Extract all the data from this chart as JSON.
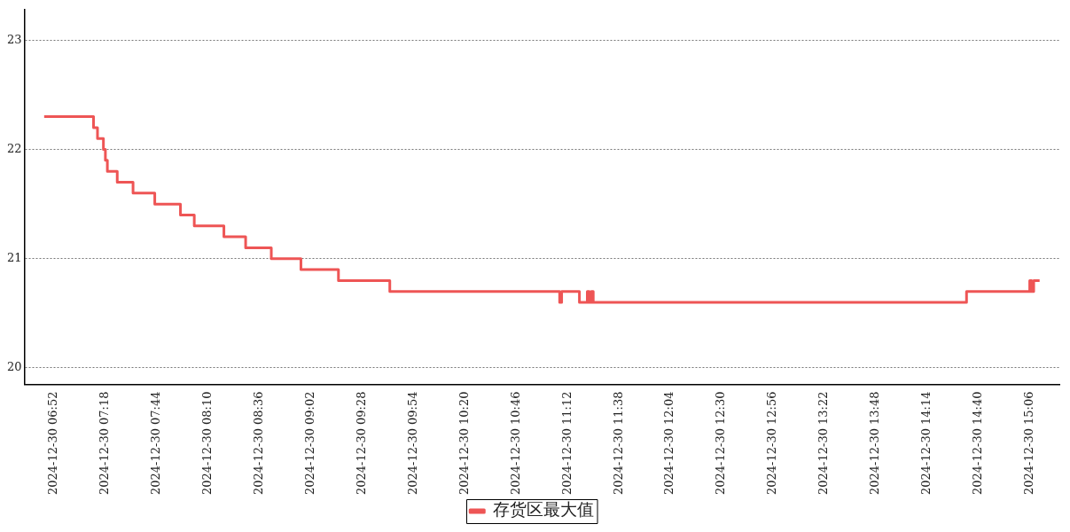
{
  "chart_data": {
    "type": "step",
    "x": [
      "2024-12-30T06:47",
      "2024-12-30T07:12",
      "2024-12-30T07:14",
      "2024-12-30T07:17",
      "2024-12-30T07:18",
      "2024-12-30T07:19",
      "2024-12-30T07:24",
      "2024-12-30T07:32",
      "2024-12-30T07:43",
      "2024-12-30T07:56",
      "2024-12-30T08:03",
      "2024-12-30T08:18",
      "2024-12-30T08:29",
      "2024-12-30T08:42",
      "2024-12-30T08:57",
      "2024-12-30T09:16",
      "2024-12-30T09:42",
      "2024-12-30T11:08",
      "2024-12-30T11:09",
      "2024-12-30T11:18",
      "2024-12-30T11:22",
      "2024-12-30T11:23",
      "2024-12-30T11:24",
      "2024-12-30T11:25",
      "2024-12-30T14:34",
      "2024-12-30T15:06",
      "2024-12-30T15:07",
      "2024-12-30T15:08",
      "2024-12-30T15:11"
    ],
    "series": [
      {
        "name": "存货区最大值",
        "color": "#ee5555",
        "values": [
          22.3,
          22.2,
          22.1,
          22.0,
          21.9,
          21.8,
          21.7,
          21.6,
          21.5,
          21.4,
          21.3,
          21.2,
          21.1,
          21.0,
          20.9,
          20.8,
          20.7,
          20.6,
          20.7,
          20.6,
          20.7,
          20.6,
          20.7,
          20.6,
          20.7,
          20.8,
          20.7,
          20.8,
          20.8
        ]
      }
    ],
    "xlim": [
      "2024-12-30T06:37",
      "2024-12-30T15:21"
    ],
    "xticks": [
      {
        "value": "2024-12-30T06:52",
        "label": "2024-12-30 06:52"
      },
      {
        "value": "2024-12-30T07:18",
        "label": "2024-12-30 07:18"
      },
      {
        "value": "2024-12-30T07:44",
        "label": "2024-12-30 07:44"
      },
      {
        "value": "2024-12-30T08:10",
        "label": "2024-12-30 08:10"
      },
      {
        "value": "2024-12-30T08:36",
        "label": "2024-12-30 08:36"
      },
      {
        "value": "2024-12-30T09:02",
        "label": "2024-12-30 09:02"
      },
      {
        "value": "2024-12-30T09:28",
        "label": "2024-12-30 09:28"
      },
      {
        "value": "2024-12-30T09:54",
        "label": "2024-12-30 09:54"
      },
      {
        "value": "2024-12-30T10:20",
        "label": "2024-12-30 10:20"
      },
      {
        "value": "2024-12-30T10:46",
        "label": "2024-12-30 10:46"
      },
      {
        "value": "2024-12-30T11:12",
        "label": "2024-12-30 11:12"
      },
      {
        "value": "2024-12-30T11:38",
        "label": "2024-12-30 11:38"
      },
      {
        "value": "2024-12-30T12:04",
        "label": "2024-12-30 12:04"
      },
      {
        "value": "2024-12-30T12:30",
        "label": "2024-12-30 12:30"
      },
      {
        "value": "2024-12-30T12:56",
        "label": "2024-12-30 12:56"
      },
      {
        "value": "2024-12-30T13:22",
        "label": "2024-12-30 13:22"
      },
      {
        "value": "2024-12-30T13:48",
        "label": "2024-12-30 13:48"
      },
      {
        "value": "2024-12-30T14:14",
        "label": "2024-12-30 14:14"
      },
      {
        "value": "2024-12-30T14:40",
        "label": "2024-12-30 14:40"
      },
      {
        "value": "2024-12-30T15:06",
        "label": "2024-12-30 15:06"
      }
    ],
    "ylim": [
      19.85,
      23.28
    ],
    "yticks": [
      20,
      21,
      22,
      23
    ],
    "grid": "y",
    "legend": "bottom",
    "marker": "none",
    "line_style": "solid"
  }
}
